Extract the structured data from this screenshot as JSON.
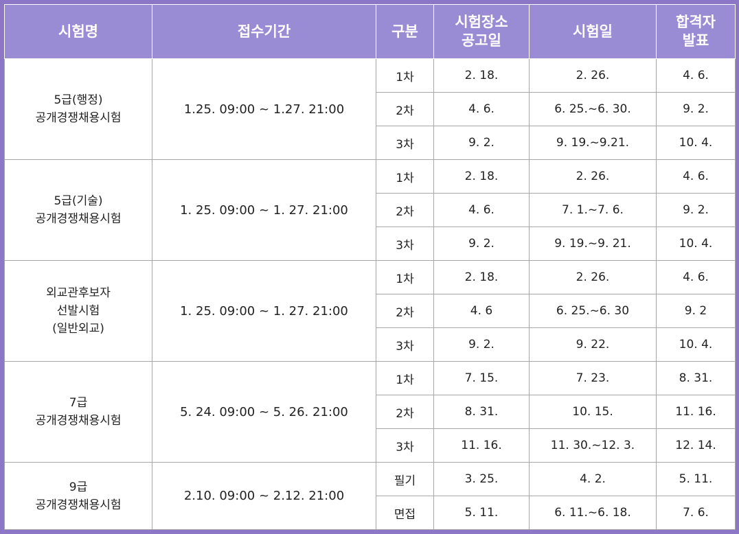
{
  "headers": {
    "exam_name": "시험명",
    "period": "접수기간",
    "stage": "구분",
    "venue_announce": [
      "시험장소",
      "공고일"
    ],
    "exam_date": "시험일",
    "result": [
      "합격자",
      "발표"
    ]
  },
  "exams": [
    {
      "name_lines": [
        "5급(행정)",
        "공개경쟁채용시험"
      ],
      "period": "1.25. 09:00 ~ 1.27. 21:00",
      "stages": [
        {
          "stage": "1차",
          "venue_announce": "2. 18.",
          "exam_date": "2. 26.",
          "result": "4. 6."
        },
        {
          "stage": "2차",
          "venue_announce": "4. 6.",
          "exam_date": "6. 25.~6. 30.",
          "result": "9. 2."
        },
        {
          "stage": "3차",
          "venue_announce": "9. 2.",
          "exam_date": "9. 19.~9.21.",
          "result": "10. 4."
        }
      ]
    },
    {
      "name_lines": [
        "5급(기술)",
        "공개경쟁채용시험"
      ],
      "period": "1. 25. 09:00 ~ 1. 27. 21:00",
      "stages": [
        {
          "stage": "1차",
          "venue_announce": "2. 18.",
          "exam_date": "2. 26.",
          "result": "4. 6."
        },
        {
          "stage": "2차",
          "venue_announce": "4. 6.",
          "exam_date": "7. 1.~7. 6.",
          "result": "9. 2."
        },
        {
          "stage": "3차",
          "venue_announce": "9. 2.",
          "exam_date": "9. 19.~9. 21.",
          "result": "10. 4."
        }
      ]
    },
    {
      "name_lines": [
        "외교관후보자",
        "선발시험",
        "(일반외교)"
      ],
      "period": "1. 25. 09:00 ~ 1. 27. 21:00",
      "stages": [
        {
          "stage": "1차",
          "venue_announce": "2. 18.",
          "exam_date": "2. 26.",
          "result": "4. 6."
        },
        {
          "stage": "2차",
          "venue_announce": "4. 6",
          "exam_date": "6. 25.~6. 30",
          "result": "9. 2"
        },
        {
          "stage": "3차",
          "venue_announce": "9. 2.",
          "exam_date": "9. 22.",
          "result": "10. 4."
        }
      ]
    },
    {
      "name_lines": [
        "7급",
        "공개경쟁채용시험"
      ],
      "period": "5. 24. 09:00 ~ 5. 26. 21:00",
      "stages": [
        {
          "stage": "1차",
          "venue_announce": "7. 15.",
          "exam_date": "7. 23.",
          "result": "8. 31."
        },
        {
          "stage": "2차",
          "venue_announce": "8. 31.",
          "exam_date": "10. 15.",
          "result": "11. 16."
        },
        {
          "stage": "3차",
          "venue_announce": "11. 16.",
          "exam_date": "11. 30.~12. 3.",
          "result": "12. 14."
        }
      ]
    },
    {
      "name_lines": [
        "9급",
        "공개경쟁채용시험"
      ],
      "period": "2.10. 09:00 ~ 2.12. 21:00",
      "stages": [
        {
          "stage": "필기",
          "venue_announce": "3. 25.",
          "exam_date": "4. 2.",
          "result": "5. 11."
        },
        {
          "stage": "면접",
          "venue_announce": "5. 11.",
          "exam_date": "6. 11.~6. 18.",
          "result": "7. 6."
        }
      ]
    }
  ]
}
